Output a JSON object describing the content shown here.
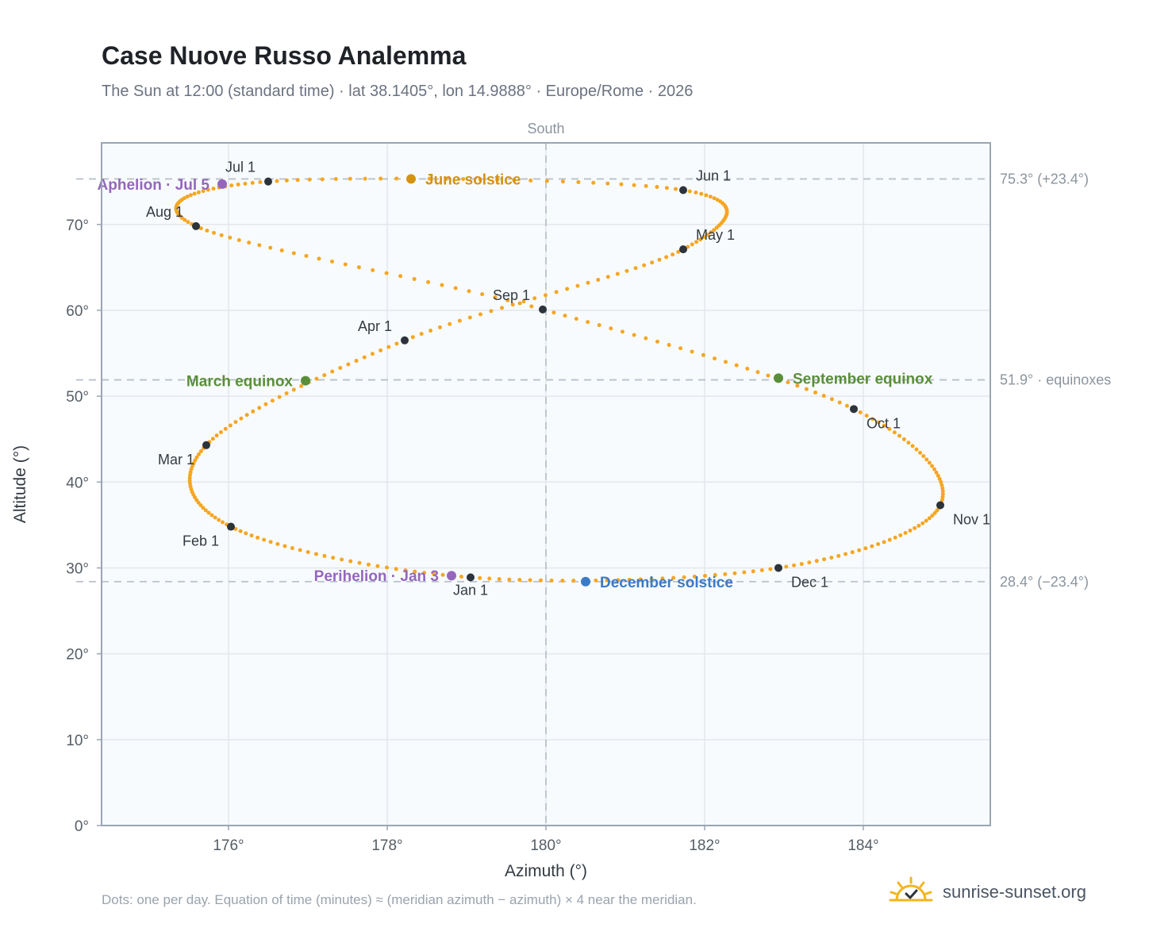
{
  "title": "Case Nuove Russo Analemma",
  "subtitle": "The Sun at 12:00 (standard time) · lat 38.1405°, lon 14.9888° · Europe/Rome · 2026",
  "footnote": "Dots: one per day. Equation of time (minutes) ≈ (meridian azimuth − azimuth) × 4 near the meridian.",
  "brand": {
    "name": "sunrise-sunset.org",
    "icon": "sun-check-icon"
  },
  "colors": {
    "path": "#f5a623",
    "month": "#2d333b",
    "solstice_june": "#d4920f",
    "solstice_december": "#3a7bc8",
    "equinox": "#5a8f3a",
    "apsis": "#9467bd",
    "plot_bg": "#f8fbfd",
    "frame": "#9aa5b4",
    "grid": "#e3e7ec",
    "ref_line": "#b9c1cb"
  },
  "chart_data": {
    "type": "scatter",
    "title": "Case Nuove Russo Analemma",
    "xlabel": "Azimuth (°)",
    "ylabel": "Altitude (°)",
    "xlim": [
      174.4,
      185.6
    ],
    "ylim": [
      0,
      79.5
    ],
    "x_ticks": [
      176,
      178,
      180,
      182,
      184
    ],
    "x_tick_labels": [
      "176°",
      "178°",
      "180°",
      "182°",
      "184°"
    ],
    "y_ticks": [
      0,
      10,
      20,
      30,
      40,
      50,
      60,
      70
    ],
    "y_tick_labels": [
      "0°",
      "10°",
      "20°",
      "30°",
      "40°",
      "50°",
      "60°",
      "70°"
    ],
    "grid": true,
    "meridian": {
      "azimuth": 180,
      "label": "South"
    },
    "reference_lines": [
      {
        "altitude": 75.3,
        "label": "75.3° (+23.4°)"
      },
      {
        "altitude": 51.9,
        "label": "51.9° · equinoxes"
      },
      {
        "altitude": 28.4,
        "label": "28.4° (−23.4°)"
      }
    ],
    "daily_path": [
      {
        "date": "Jan 1",
        "az": 179.05,
        "alt": 28.9
      },
      {
        "date": "Feb 1",
        "az": 176.03,
        "alt": 34.8
      },
      {
        "date": "Mar 1",
        "az": 175.72,
        "alt": 44.3
      },
      {
        "date": "Apr 1",
        "az": 178.22,
        "alt": 56.5
      },
      {
        "date": "May 1",
        "az": 181.73,
        "alt": 67.1
      },
      {
        "date": "Jun 1",
        "az": 181.73,
        "alt": 74.0
      },
      {
        "date": "Jul 1",
        "az": 176.5,
        "alt": 75.0
      },
      {
        "date": "Aug 1",
        "az": 175.59,
        "alt": 69.8
      },
      {
        "date": "Sep 1",
        "az": 179.96,
        "alt": 60.1
      },
      {
        "date": "Oct 1",
        "az": 183.88,
        "alt": 48.5
      },
      {
        "date": "Nov 1",
        "az": 184.97,
        "alt": 37.3
      },
      {
        "date": "Dec 1",
        "az": 182.93,
        "alt": 30.0
      }
    ],
    "month_markers": [
      {
        "label": "Jan 1",
        "az": 179.05,
        "alt": 28.9,
        "pos": "below"
      },
      {
        "label": "Feb 1",
        "az": 176.03,
        "alt": 34.8,
        "pos": "below-left"
      },
      {
        "label": "Mar 1",
        "az": 175.72,
        "alt": 44.3,
        "pos": "below-left"
      },
      {
        "label": "Apr 1",
        "az": 178.22,
        "alt": 56.5,
        "pos": "above-left"
      },
      {
        "label": "May 1",
        "az": 181.73,
        "alt": 67.1,
        "pos": "above-right"
      },
      {
        "label": "Jun 1",
        "az": 181.73,
        "alt": 74.0,
        "pos": "above-right"
      },
      {
        "label": "Jul 1",
        "az": 176.5,
        "alt": 75.0,
        "pos": "above-left"
      },
      {
        "label": "Aug 1",
        "az": 175.59,
        "alt": 69.8,
        "pos": "above-left"
      },
      {
        "label": "Sep 1",
        "az": 179.96,
        "alt": 60.1,
        "pos": "above-left"
      },
      {
        "label": "Oct 1",
        "az": 183.88,
        "alt": 48.5,
        "pos": "below-right"
      },
      {
        "label": "Nov 1",
        "az": 184.97,
        "alt": 37.3,
        "pos": "below-right"
      },
      {
        "label": "Dec 1",
        "az": 182.93,
        "alt": 30.0,
        "pos": "below-right"
      }
    ],
    "events": [
      {
        "label": "June solstice",
        "az": 178.3,
        "alt": 75.3,
        "color": "#d4920f",
        "pos": "right"
      },
      {
        "label": "December solstice",
        "az": 180.5,
        "alt": 28.4,
        "color": "#3a7bc8",
        "pos": "right"
      },
      {
        "label": "March equinox",
        "az": 176.97,
        "alt": 51.8,
        "color": "#5a8f3a",
        "pos": "left"
      },
      {
        "label": "September equinox",
        "az": 182.93,
        "alt": 52.1,
        "color": "#5a8f3a",
        "pos": "right"
      },
      {
        "label": "Aphelion · Jul 5",
        "az": 175.92,
        "alt": 74.7,
        "color": "#9467bd",
        "pos": "left"
      },
      {
        "label": "Perihelion · Jan 3",
        "az": 178.81,
        "alt": 29.1,
        "color": "#9467bd",
        "pos": "left"
      }
    ]
  }
}
